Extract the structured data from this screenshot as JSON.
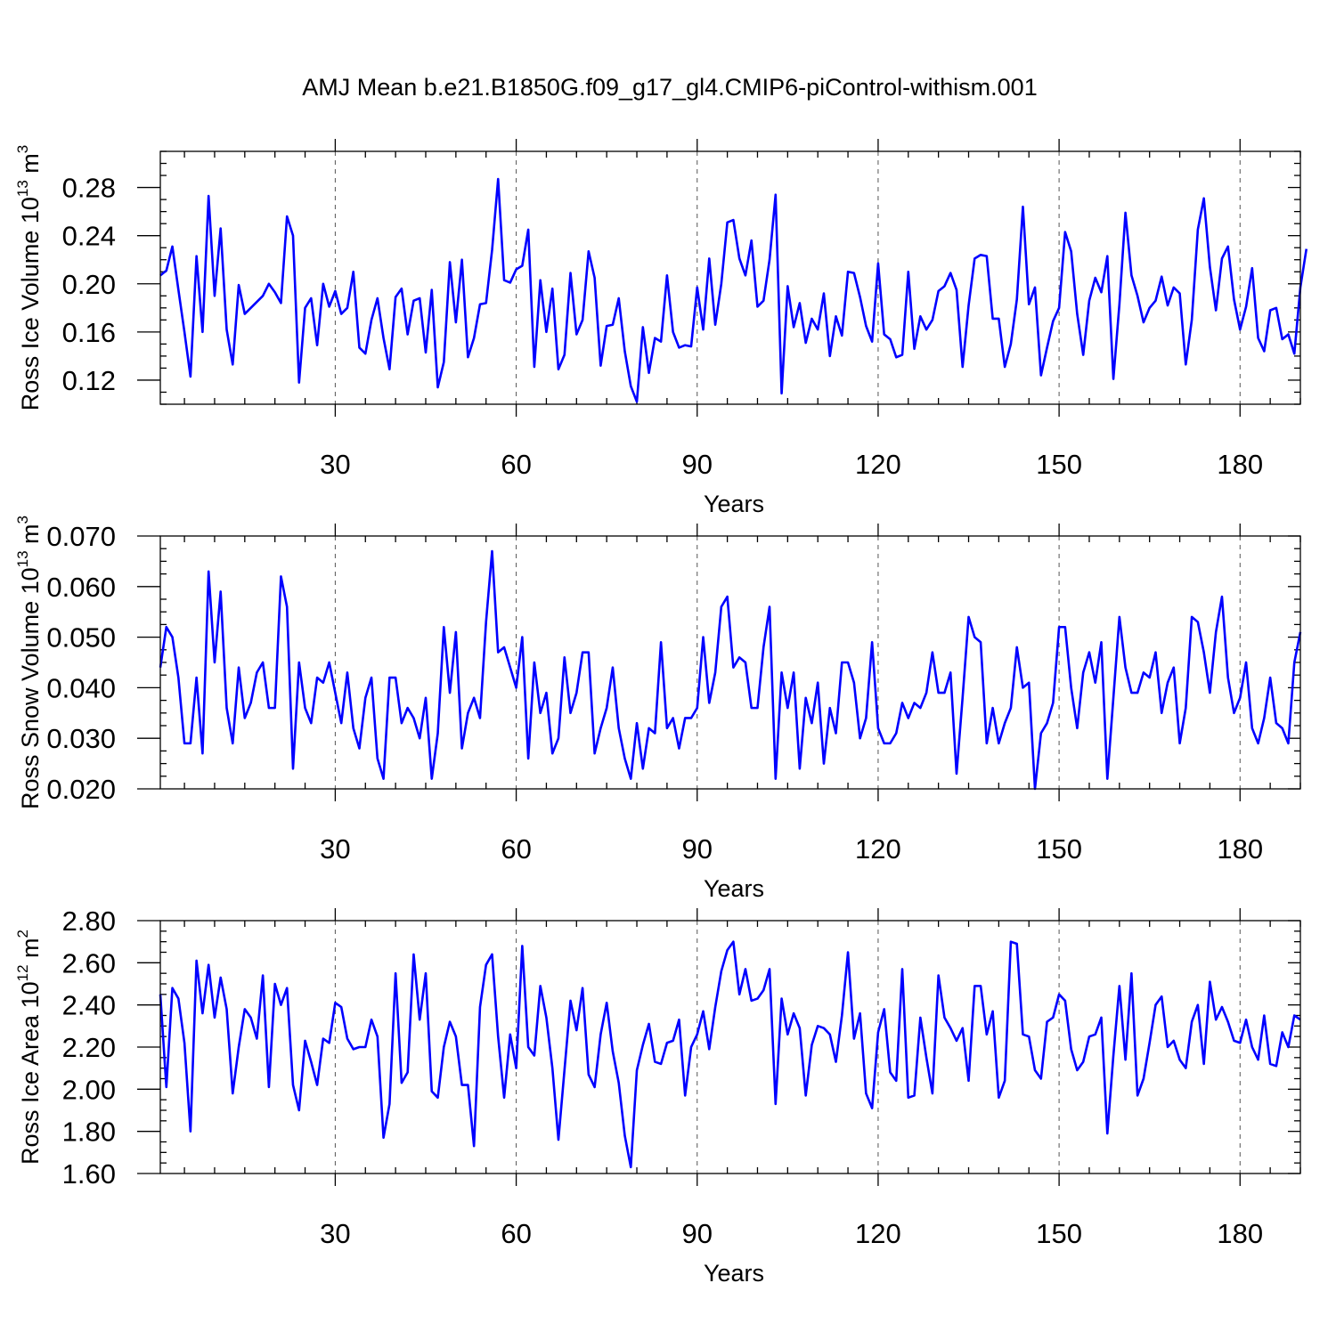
{
  "figure": {
    "title": "AMJ Mean b.e21.B1850G.f09_g17_gl4.CMIP6-piControl-withism.001"
  },
  "chart_data": [
    {
      "type": "line",
      "xlabel": "Years",
      "ylabel": {
        "prefix": "Ross Ice Volume 10",
        "exp": "13",
        "unit": " m",
        "unit_exp": "3"
      },
      "xlim": [
        1,
        190
      ],
      "ylim": [
        0.1,
        0.31
      ],
      "xticks": [
        30,
        60,
        90,
        120,
        150,
        180
      ],
      "xtick_labels": [
        "30",
        "60",
        "90",
        "120",
        "150",
        "180"
      ],
      "yticks": [
        0.12,
        0.16,
        0.2,
        0.24,
        0.28
      ],
      "ytick_labels": [
        "0.12",
        "0.16",
        "0.20",
        "0.24",
        "0.28"
      ],
      "grid": "dashed vertical at x ticks",
      "series_color": "#0000ff",
      "x_start": 1,
      "values": [
        0.207,
        0.211,
        0.231,
        0.195,
        0.16,
        0.123,
        0.223,
        0.16,
        0.273,
        0.19,
        0.246,
        0.162,
        0.133,
        0.199,
        0.175,
        0.18,
        0.185,
        0.19,
        0.2,
        0.193,
        0.184,
        0.256,
        0.24,
        0.118,
        0.18,
        0.188,
        0.149,
        0.2,
        0.181,
        0.194,
        0.175,
        0.18,
        0.21,
        0.147,
        0.142,
        0.17,
        0.188,
        0.155,
        0.129,
        0.189,
        0.196,
        0.158,
        0.186,
        0.188,
        0.143,
        0.195,
        0.114,
        0.135,
        0.218,
        0.168,
        0.22,
        0.139,
        0.155,
        0.183,
        0.184,
        0.228,
        0.287,
        0.203,
        0.201,
        0.212,
        0.215,
        0.245,
        0.131,
        0.203,
        0.16,
        0.196,
        0.129,
        0.141,
        0.209,
        0.158,
        0.17,
        0.227,
        0.205,
        0.132,
        0.165,
        0.166,
        0.188,
        0.144,
        0.115,
        0.102,
        0.164,
        0.126,
        0.155,
        0.152,
        0.207,
        0.16,
        0.147,
        0.149,
        0.148,
        0.197,
        0.162,
        0.221,
        0.166,
        0.2,
        0.251,
        0.253,
        0.221,
        0.207,
        0.236,
        0.181,
        0.186,
        0.22,
        0.274,
        0.109,
        0.198,
        0.164,
        0.184,
        0.151,
        0.171,
        0.162,
        0.192,
        0.14,
        0.173,
        0.157,
        0.21,
        0.209,
        0.189,
        0.165,
        0.152,
        0.217,
        0.158,
        0.154,
        0.139,
        0.141,
        0.21,
        0.146,
        0.173,
        0.162,
        0.17,
        0.194,
        0.198,
        0.209,
        0.195,
        0.131,
        0.182,
        0.221,
        0.224,
        0.223,
        0.171,
        0.171,
        0.131,
        0.15,
        0.187,
        0.264,
        0.183,
        0.197,
        0.124,
        0.147,
        0.169,
        0.18,
        0.243,
        0.227,
        0.175,
        0.141,
        0.186,
        0.205,
        0.193,
        0.223,
        0.121,
        0.183,
        0.259,
        0.207,
        0.19,
        0.168,
        0.18,
        0.186,
        0.206,
        0.182,
        0.197,
        0.192,
        0.133,
        0.17,
        0.245,
        0.271,
        0.214,
        0.178,
        0.221,
        0.231,
        0.187,
        0.162,
        0.181,
        0.213,
        0.155,
        0.144,
        0.178,
        0.18,
        0.154,
        0.158,
        0.142,
        0.197,
        0.229
      ]
    },
    {
      "type": "line",
      "xlabel": "Years",
      "ylabel": {
        "prefix": "Ross Snow Volume 10",
        "exp": "13",
        "unit": " m",
        "unit_exp": "3"
      },
      "xlim": [
        1,
        190
      ],
      "ylim": [
        0.02,
        0.07
      ],
      "xticks": [
        30,
        60,
        90,
        120,
        150,
        180
      ],
      "xtick_labels": [
        "30",
        "60",
        "90",
        "120",
        "150",
        "180"
      ],
      "yticks": [
        0.02,
        0.03,
        0.04,
        0.05,
        0.06,
        0.07
      ],
      "ytick_labels": [
        "0.020",
        "0.030",
        "0.040",
        "0.050",
        "0.060",
        "0.070"
      ],
      "grid": "dashed vertical at x ticks",
      "series_color": "#0000ff",
      "x_start": 1,
      "values": [
        0.044,
        0.052,
        0.05,
        0.042,
        0.029,
        0.029,
        0.042,
        0.027,
        0.063,
        0.045,
        0.059,
        0.036,
        0.029,
        0.044,
        0.034,
        0.037,
        0.043,
        0.045,
        0.036,
        0.036,
        0.062,
        0.056,
        0.024,
        0.045,
        0.036,
        0.033,
        0.042,
        0.041,
        0.045,
        0.039,
        0.033,
        0.043,
        0.032,
        0.028,
        0.038,
        0.042,
        0.026,
        0.022,
        0.042,
        0.042,
        0.033,
        0.036,
        0.034,
        0.03,
        0.038,
        0.022,
        0.031,
        0.052,
        0.039,
        0.051,
        0.028,
        0.035,
        0.038,
        0.034,
        0.053,
        0.067,
        0.047,
        0.048,
        0.044,
        0.04,
        0.05,
        0.026,
        0.045,
        0.035,
        0.039,
        0.027,
        0.03,
        0.046,
        0.035,
        0.039,
        0.047,
        0.047,
        0.027,
        0.032,
        0.036,
        0.044,
        0.032,
        0.026,
        0.022,
        0.033,
        0.024,
        0.032,
        0.031,
        0.049,
        0.032,
        0.034,
        0.028,
        0.034,
        0.034,
        0.036,
        0.05,
        0.037,
        0.043,
        0.056,
        0.058,
        0.044,
        0.046,
        0.045,
        0.036,
        0.036,
        0.048,
        0.056,
        0.022,
        0.043,
        0.036,
        0.043,
        0.024,
        0.038,
        0.033,
        0.041,
        0.025,
        0.036,
        0.031,
        0.045,
        0.045,
        0.041,
        0.03,
        0.034,
        0.049,
        0.032,
        0.029,
        0.029,
        0.031,
        0.037,
        0.034,
        0.037,
        0.036,
        0.039,
        0.047,
        0.039,
        0.039,
        0.043,
        0.023,
        0.038,
        0.054,
        0.05,
        0.049,
        0.029,
        0.036,
        0.029,
        0.033,
        0.036,
        0.048,
        0.04,
        0.041,
        0.02,
        0.031,
        0.033,
        0.037,
        0.052,
        0.052,
        0.04,
        0.032,
        0.043,
        0.047,
        0.041,
        0.049,
        0.022,
        0.038,
        0.054,
        0.044,
        0.039,
        0.039,
        0.043,
        0.042,
        0.047,
        0.035,
        0.041,
        0.044,
        0.029,
        0.036,
        0.054,
        0.053,
        0.047,
        0.039,
        0.051,
        0.058,
        0.042,
        0.035,
        0.038,
        0.045,
        0.032,
        0.029,
        0.034,
        0.042,
        0.033,
        0.032,
        0.029,
        0.045,
        0.051
      ]
    },
    {
      "type": "line",
      "xlabel": "Years",
      "ylabel": {
        "prefix": "Ross Ice Area 10",
        "exp": "12",
        "unit": " m",
        "unit_exp": "2"
      },
      "xlim": [
        1,
        190
      ],
      "ylim": [
        1.6,
        2.8
      ],
      "xticks": [
        30,
        60,
        90,
        120,
        150,
        180
      ],
      "xtick_labels": [
        "30",
        "60",
        "90",
        "120",
        "150",
        "180"
      ],
      "yticks": [
        1.6,
        1.8,
        2.0,
        2.2,
        2.4,
        2.6,
        2.8
      ],
      "ytick_labels": [
        "1.60",
        "1.80",
        "2.00",
        "2.20",
        "2.40",
        "2.60",
        "2.80"
      ],
      "grid": "dashed vertical at x ticks",
      "series_color": "#0000ff",
      "x_start": 1,
      "values": [
        2.45,
        2.01,
        2.48,
        2.43,
        2.22,
        1.8,
        2.61,
        2.36,
        2.59,
        2.34,
        2.53,
        2.38,
        1.98,
        2.2,
        2.38,
        2.34,
        2.24,
        2.54,
        2.01,
        2.5,
        2.4,
        2.48,
        2.02,
        1.9,
        2.23,
        2.13,
        2.02,
        2.24,
        2.22,
        2.41,
        2.39,
        2.24,
        2.19,
        2.2,
        2.2,
        2.33,
        2.25,
        1.77,
        1.93,
        2.55,
        2.03,
        2.08,
        2.64,
        2.33,
        2.55,
        1.99,
        1.96,
        2.2,
        2.32,
        2.25,
        2.02,
        2.02,
        1.73,
        2.39,
        2.59,
        2.64,
        2.25,
        1.96,
        2.26,
        2.1,
        2.68,
        2.2,
        2.16,
        2.49,
        2.34,
        2.1,
        1.76,
        2.09,
        2.42,
        2.28,
        2.48,
        2.07,
        2.01,
        2.26,
        2.41,
        2.18,
        2.03,
        1.78,
        1.63,
        2.09,
        2.21,
        2.31,
        2.13,
        2.12,
        2.22,
        2.23,
        2.33,
        1.97,
        2.2,
        2.26,
        2.37,
        2.19,
        2.39,
        2.56,
        2.66,
        2.7,
        2.45,
        2.57,
        2.42,
        2.43,
        2.47,
        2.57,
        1.93,
        2.43,
        2.26,
        2.36,
        2.29,
        1.97,
        2.21,
        2.3,
        2.29,
        2.26,
        2.13,
        2.35,
        2.65,
        2.24,
        2.36,
        1.98,
        1.91,
        2.27,
        2.38,
        2.08,
        2.04,
        2.57,
        1.96,
        1.97,
        2.34,
        2.15,
        1.98,
        2.54,
        2.34,
        2.29,
        2.23,
        2.29,
        2.04,
        2.49,
        2.49,
        2.26,
        2.37,
        1.96,
        2.04,
        2.7,
        2.69,
        2.26,
        2.25,
        2.09,
        2.05,
        2.32,
        2.34,
        2.45,
        2.42,
        2.19,
        2.09,
        2.13,
        2.25,
        2.26,
        2.34,
        1.79,
        2.16,
        2.49,
        2.14,
        2.55,
        1.97,
        2.05,
        2.22,
        2.4,
        2.44,
        2.2,
        2.23,
        2.14,
        2.1,
        2.32,
        2.4,
        2.12,
        2.51,
        2.33,
        2.39,
        2.32,
        2.23,
        2.22,
        2.33,
        2.2,
        2.14,
        2.35,
        2.12,
        2.11,
        2.27,
        2.2,
        2.35,
        2.33
      ]
    }
  ]
}
